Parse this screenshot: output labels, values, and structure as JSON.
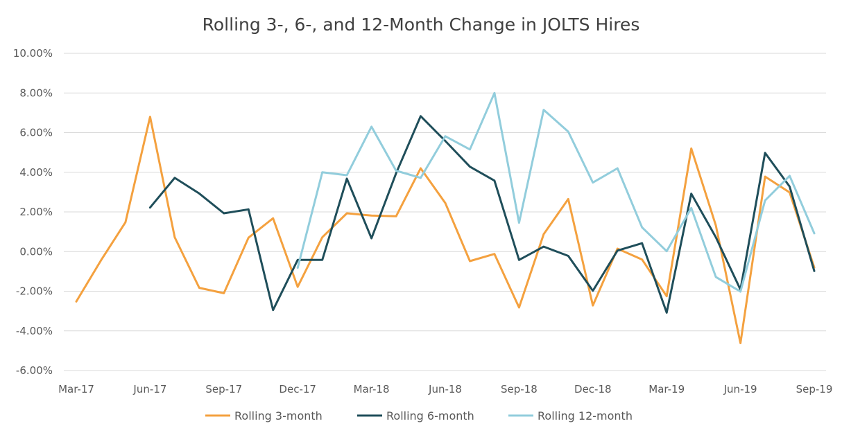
{
  "chart_data": {
    "type": "line",
    "title": "Rolling 3-, 6-, and 12-Month Change in JOLTS Hires",
    "xlabel": "",
    "ylabel": "",
    "x_ticks": [
      "Mar-17",
      "Jun-17",
      "Sep-17",
      "Dec-17",
      "Mar-18",
      "Jun-18",
      "Sep-18",
      "Dec-18",
      "Mar-19",
      "Jun-19",
      "Sep-19"
    ],
    "y_ticks": [
      "10.00%",
      "8.00%",
      "6.00%",
      "4.00%",
      "2.00%",
      "0.00%",
      "-2.00%",
      "-4.00%",
      "-6.00%"
    ],
    "ylim": [
      -0.06,
      0.1
    ],
    "x": [
      "Mar-17",
      "Apr-17",
      "May-17",
      "Jun-17",
      "Jul-17",
      "Aug-17",
      "Sep-17",
      "Oct-17",
      "Nov-17",
      "Dec-17",
      "Jan-18",
      "Feb-18",
      "Mar-18",
      "Apr-18",
      "May-18",
      "Jun-18",
      "Jul-18",
      "Aug-18",
      "Sep-18",
      "Oct-18",
      "Nov-18",
      "Dec-18",
      "Jan-19",
      "Feb-19",
      "Mar-19",
      "Apr-19",
      "May-19",
      "Jun-19",
      "Jul-19",
      "Aug-19",
      "Sep-19"
    ],
    "series": [
      {
        "name": "Rolling 3-month",
        "color": "#F4A13F",
        "values": [
          -0.0252,
          -0.0045,
          0.0148,
          0.068,
          0.0072,
          -0.0183,
          -0.021,
          0.007,
          0.0168,
          -0.0178,
          0.0072,
          0.0193,
          0.0182,
          0.0178,
          0.042,
          0.0245,
          -0.0048,
          -0.0012,
          -0.0282,
          0.0088,
          0.0265,
          -0.0272,
          0.0015,
          -0.004,
          -0.0225,
          0.052,
          0.0132,
          -0.0462,
          0.0378,
          0.0298,
          -0.008
        ]
      },
      {
        "name": "Rolling 6-month",
        "color": "#1F4E5A",
        "values": [
          null,
          null,
          null,
          0.0222,
          0.0372,
          0.0293,
          0.0193,
          0.0213,
          -0.0295,
          -0.0042,
          -0.0042,
          0.0368,
          0.0067,
          0.0395,
          0.0683,
          0.0558,
          0.0428,
          0.0358,
          -0.0042,
          0.0025,
          -0.0022,
          -0.0198,
          0.0005,
          0.0042,
          -0.0308,
          0.0292,
          0.0072,
          -0.0192,
          0.0498,
          0.0328,
          -0.0098
        ]
      },
      {
        "name": "Rolling 12-month",
        "color": "#92CDDC",
        "values": [
          null,
          null,
          null,
          null,
          null,
          null,
          null,
          null,
          null,
          -0.0082,
          0.04,
          0.0385,
          0.063,
          0.0408,
          0.0372,
          0.0582,
          0.0515,
          0.08,
          0.0145,
          0.0715,
          0.0605,
          0.0348,
          0.042,
          0.0122,
          0.0002,
          0.022,
          -0.0128,
          -0.0202,
          0.0258,
          0.0382,
          0.0092
        ]
      }
    ],
    "grid": true,
    "legend": "bottom"
  }
}
